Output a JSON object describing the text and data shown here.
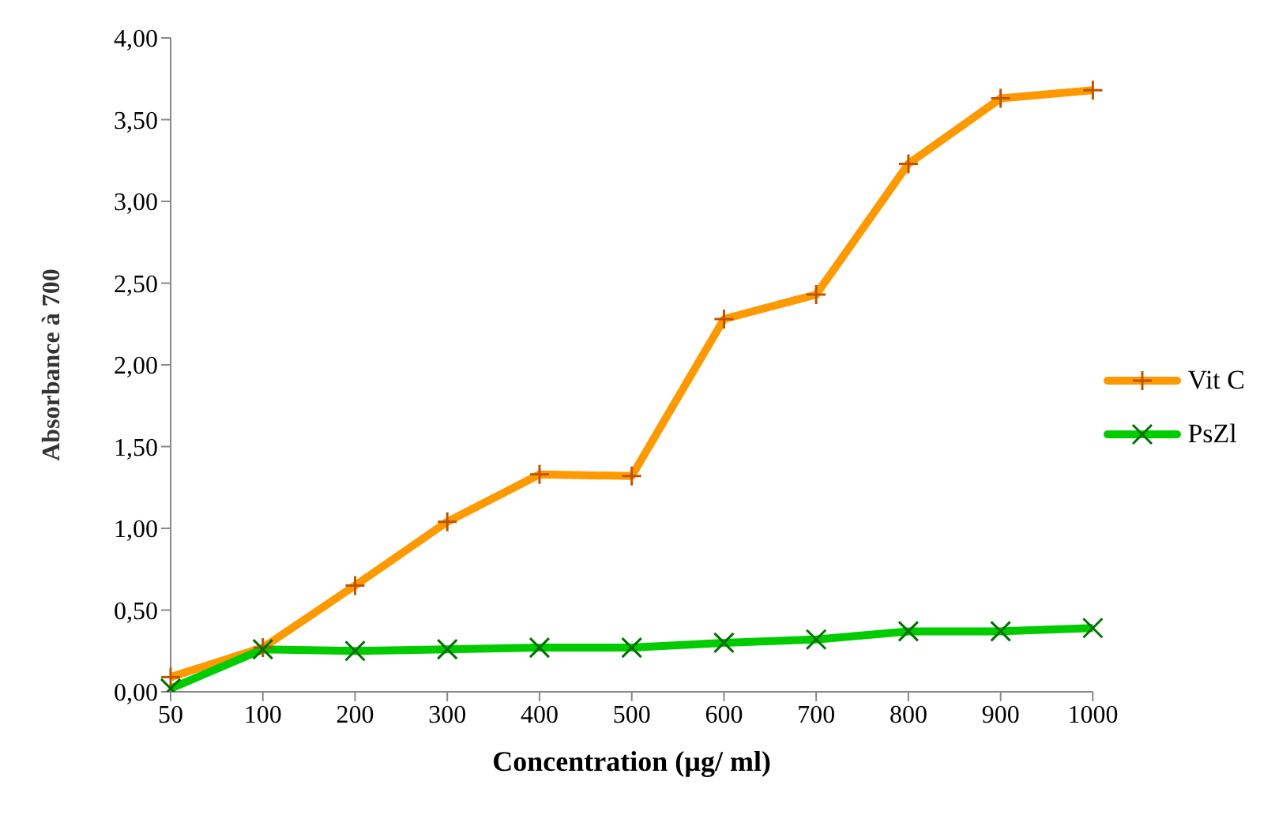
{
  "chart_data": {
    "type": "line",
    "xlabel": "Concentration (µg/ ml)",
    "ylabel": "Absorbance à 700",
    "categories": [
      "50",
      "100",
      "200",
      "300",
      "400",
      "500",
      "600",
      "700",
      "800",
      "900",
      "1000"
    ],
    "series": [
      {
        "name": "Vit C",
        "color": "#ff9900",
        "marker": "cross",
        "values": [
          0.09,
          0.27,
          0.65,
          1.04,
          1.33,
          1.32,
          2.28,
          2.43,
          3.23,
          3.63,
          3.68
        ]
      },
      {
        "name": "PsZl",
        "color": "#00cc00",
        "marker": "x",
        "values": [
          0.02,
          0.26,
          0.25,
          0.26,
          0.27,
          0.27,
          0.3,
          0.32,
          0.37,
          0.37,
          0.39
        ]
      }
    ],
    "ylim": [
      0,
      4
    ],
    "yticks": [
      {
        "value": 0,
        "label": "0,00"
      },
      {
        "value": 0.5,
        "label": "0,50"
      },
      {
        "value": 1,
        "label": "1,00"
      },
      {
        "value": 1.5,
        "label": "1,50"
      },
      {
        "value": 2,
        "label": "2,00"
      },
      {
        "value": 2.5,
        "label": "2,50"
      },
      {
        "value": 3,
        "label": "3,00"
      },
      {
        "value": 3.5,
        "label": "3,50"
      },
      {
        "value": 4,
        "label": "4,00"
      }
    ],
    "grid": false,
    "legend": "right",
    "line_style": "solid"
  }
}
